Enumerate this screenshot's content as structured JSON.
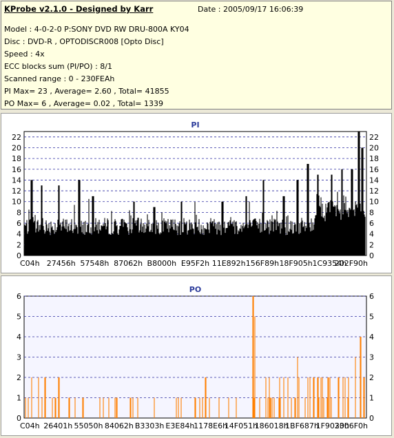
{
  "info": {
    "title": "KProbe v2.1.0 - Designed by Karr",
    "date": "Date : 2005/09/17 16:06:39",
    "lines": [
      "Model : 4-0-2-0 P:SONY    DVD RW DRU-800A  KY04",
      "Disc : DVD-R , OPTODISCR008 [Opto Disc]",
      "Speed : 4x",
      "ECC blocks sum (PI/PO) : 8/1",
      "Scanned range : 0 - 230FEAh",
      "PI Max= 23 , Average= 2.60 , Total= 41855",
      "PO Max= 6 , Average= 0.02 , Total= 1339"
    ]
  },
  "chart_data": [
    {
      "type": "bar",
      "title": "PI",
      "ylim": [
        0,
        23
      ],
      "yticks": [
        0,
        2,
        4,
        6,
        8,
        10,
        12,
        14,
        16,
        18,
        20,
        22
      ],
      "xlabels": [
        "C04h",
        "27456h",
        "57548h",
        "87062h",
        "B8000h",
        "E95F2h",
        "11E892h",
        "156F89h",
        "18F905h",
        "1C9354h",
        "202F90h"
      ],
      "grid": true,
      "series_color": "#000000",
      "background": "#ffffff",
      "max": 23,
      "average": 2.6,
      "peaks": [
        [
          0.02,
          14
        ],
        [
          0.05,
          13
        ],
        [
          0.1,
          13
        ],
        [
          0.16,
          14
        ],
        [
          0.2,
          11
        ],
        [
          0.32,
          10
        ],
        [
          0.38,
          9
        ],
        [
          0.46,
          10
        ],
        [
          0.58,
          10
        ],
        [
          0.65,
          11
        ],
        [
          0.7,
          14
        ],
        [
          0.76,
          11
        ],
        [
          0.8,
          14
        ],
        [
          0.83,
          17
        ],
        [
          0.86,
          15
        ],
        [
          0.9,
          15
        ],
        [
          0.93,
          16
        ],
        [
          0.96,
          16
        ],
        [
          0.98,
          23
        ],
        [
          0.99,
          20
        ]
      ]
    },
    {
      "type": "bar",
      "title": "PO",
      "ylim": [
        0,
        6
      ],
      "yticks": [
        0,
        1,
        2,
        3,
        4,
        5,
        6
      ],
      "xlabels": [
        "C04h",
        "26401h",
        "55050h",
        "84062h",
        "B3303h",
        "E3E84h",
        "1178E6h",
        "14F051h",
        "186018h",
        "1BF687h",
        "1F9030h",
        "2306F0h"
      ],
      "grid": true,
      "series_color": "#ff7f00",
      "background": "#f5f5ff",
      "max": 6,
      "average": 0.02,
      "peaks": [
        [
          0.01,
          1
        ],
        [
          0.02,
          2
        ],
        [
          0.04,
          2
        ],
        [
          0.06,
          2
        ],
        [
          0.09,
          1
        ],
        [
          0.1,
          2
        ],
        [
          0.13,
          1
        ],
        [
          0.17,
          1
        ],
        [
          0.22,
          1
        ],
        [
          0.27,
          1
        ],
        [
          0.31,
          1
        ],
        [
          0.38,
          1
        ],
        [
          0.45,
          1
        ],
        [
          0.5,
          1
        ],
        [
          0.53,
          2
        ],
        [
          0.57,
          1
        ],
        [
          0.62,
          1
        ],
        [
          0.67,
          6
        ],
        [
          0.675,
          5
        ],
        [
          0.72,
          1
        ],
        [
          0.76,
          2
        ],
        [
          0.8,
          3
        ],
        [
          0.83,
          2
        ],
        [
          0.86,
          2
        ],
        [
          0.89,
          2
        ],
        [
          0.92,
          2
        ],
        [
          0.95,
          2
        ],
        [
          0.97,
          3
        ],
        [
          0.985,
          4
        ],
        [
          0.995,
          2
        ]
      ]
    }
  ]
}
